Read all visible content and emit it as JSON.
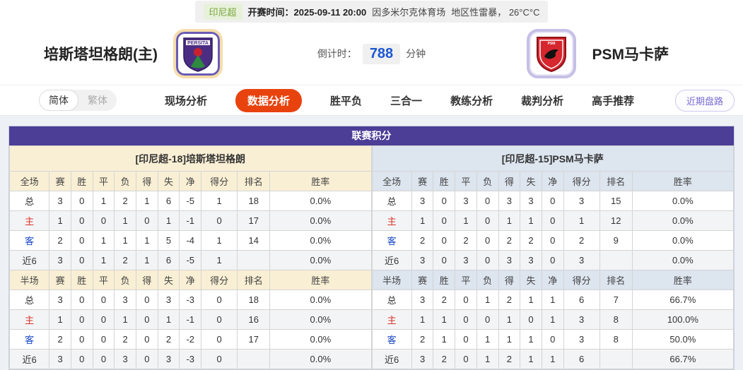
{
  "meta": {
    "league": "印尼超",
    "kickoff_label": "开赛时间：",
    "kickoff_time": "2025-09-11 20:00",
    "venue": "因多米尔克体育场",
    "weather": "地区性雷暴， 26°C°C"
  },
  "header": {
    "home_name": "培斯塔坦格朗(主)",
    "away_name": "PSM马卡萨",
    "home_crest_text": "PERSITA",
    "away_crest_text": "PSM",
    "countdown_label": "倒计时：",
    "countdown_value": "788",
    "countdown_unit": "分钟"
  },
  "nav": {
    "lang": [
      {
        "label": "简体",
        "active": true
      },
      {
        "label": "繁体",
        "active": false
      }
    ],
    "tabs": [
      {
        "label": "现场分析",
        "active": false
      },
      {
        "label": "数据分析",
        "active": true
      },
      {
        "label": "胜平负",
        "active": false
      },
      {
        "label": "三合一",
        "active": false
      },
      {
        "label": "教练分析",
        "active": false
      },
      {
        "label": "裁判分析",
        "active": false
      },
      {
        "label": "高手推荐",
        "active": false
      }
    ],
    "recent_button": "近期盘路"
  },
  "colors": {
    "accent_orange": "#e8430e",
    "table_title_purple": "#4c3d96",
    "home_section_bg": "#f9efd4",
    "away_section_bg": "#dde5ef",
    "home_row_label_red": "#d9342b",
    "away_row_label_blue": "#1a49c8",
    "countdown_blue": "#1c57d2",
    "league_badge_green": "#78a53c"
  },
  "league_table": {
    "title": "联赛积分",
    "columns": [
      "赛",
      "胜",
      "平",
      "负",
      "得",
      "失",
      "净",
      "得分",
      "排名",
      "胜率"
    ],
    "full_label": "全场",
    "half_label": "半场",
    "left": {
      "team_header": "[印尼超-18]培斯塔坦格朗",
      "full_rows": [
        [
          "总",
          "3",
          "0",
          "1",
          "2",
          "1",
          "6",
          "-5",
          "1",
          "18",
          "0.0%"
        ],
        [
          "主",
          "1",
          "0",
          "0",
          "1",
          "0",
          "1",
          "-1",
          "0",
          "17",
          "0.0%"
        ],
        [
          "客",
          "2",
          "0",
          "1",
          "1",
          "1",
          "5",
          "-4",
          "1",
          "14",
          "0.0%"
        ],
        [
          "近6",
          "3",
          "0",
          "1",
          "2",
          "1",
          "6",
          "-5",
          "1",
          "",
          "0.0%"
        ]
      ],
      "half_rows": [
        [
          "总",
          "3",
          "0",
          "0",
          "3",
          "0",
          "3",
          "-3",
          "0",
          "18",
          "0.0%"
        ],
        [
          "主",
          "1",
          "0",
          "0",
          "1",
          "0",
          "1",
          "-1",
          "0",
          "16",
          "0.0%"
        ],
        [
          "客",
          "2",
          "0",
          "0",
          "2",
          "0",
          "2",
          "-2",
          "0",
          "17",
          "0.0%"
        ],
        [
          "近6",
          "3",
          "0",
          "0",
          "3",
          "0",
          "3",
          "-3",
          "0",
          "",
          "0.0%"
        ]
      ]
    },
    "right": {
      "team_header": "[印尼超-15]PSM马卡萨",
      "full_rows": [
        [
          "总",
          "3",
          "0",
          "3",
          "0",
          "3",
          "3",
          "0",
          "3",
          "15",
          "0.0%"
        ],
        [
          "主",
          "1",
          "0",
          "1",
          "0",
          "1",
          "1",
          "0",
          "1",
          "12",
          "0.0%"
        ],
        [
          "客",
          "2",
          "0",
          "2",
          "0",
          "2",
          "2",
          "0",
          "2",
          "9",
          "0.0%"
        ],
        [
          "近6",
          "3",
          "0",
          "3",
          "0",
          "3",
          "3",
          "0",
          "3",
          "",
          "0.0%"
        ]
      ],
      "half_rows": [
        [
          "总",
          "3",
          "2",
          "0",
          "1",
          "2",
          "1",
          "1",
          "6",
          "7",
          "66.7%"
        ],
        [
          "主",
          "1",
          "1",
          "0",
          "0",
          "1",
          "0",
          "1",
          "3",
          "8",
          "100.0%"
        ],
        [
          "客",
          "2",
          "1",
          "0",
          "1",
          "1",
          "1",
          "0",
          "3",
          "8",
          "50.0%"
        ],
        [
          "近6",
          "3",
          "2",
          "0",
          "1",
          "2",
          "1",
          "1",
          "6",
          "",
          "66.7%"
        ]
      ]
    }
  }
}
